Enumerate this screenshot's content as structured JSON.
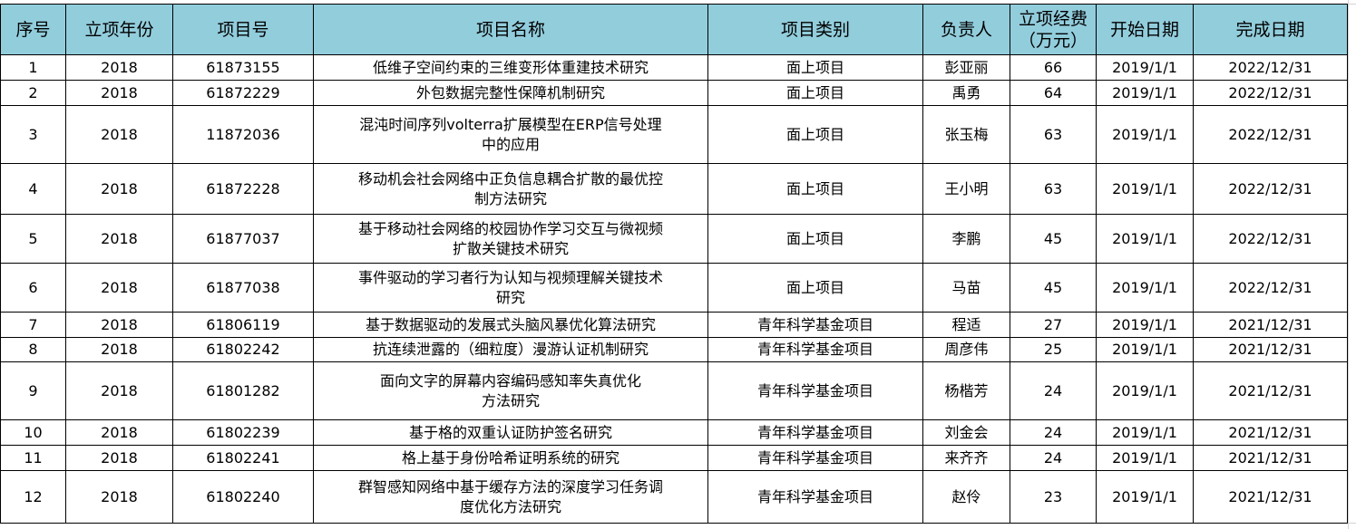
{
  "header": [
    "序号",
    "立项年份",
    "项目号",
    "项目名称",
    "项目类别",
    "负责人",
    "立项经费\n（万元）",
    "开始日期",
    "完成日期"
  ],
  "header_color": "#92CDDC",
  "rows": [
    [
      "1",
      "2018",
      "61873155",
      "低维子空间约束的三维变形体重建技术研究",
      "面上项目",
      "彭亚丽",
      "66",
      "2019/1/1",
      "2022/12/31"
    ],
    [
      "2",
      "2018",
      "61872229",
      "外包数据完整性保障机制研究",
      "面上项目",
      "禹勇",
      "64",
      "2019/1/1",
      "2022/12/31"
    ],
    [
      "3",
      "2018",
      "11872036",
      "混沌时间序列volterra扩展模型在ERP信号处理\n中的应用",
      "面上项目",
      "张玉梅",
      "63",
      "2019/1/1",
      "2022/12/31"
    ],
    [
      "4",
      "2018",
      "61872228",
      "移动机会社会网络中正负信息耦合扩散的最优控\n制方法研究",
      "面上项目",
      "王小明",
      "63",
      "2019/1/1",
      "2022/12/31"
    ],
    [
      "5",
      "2018",
      "61877037",
      "基于移动社会网络的校园协作学习交互与微视频\n扩散关键技术研究",
      "面上项目",
      "李鹏",
      "45",
      "2019/1/1",
      "2022/12/31"
    ],
    [
      "6",
      "2018",
      "61877038",
      "事件驱动的学习者行为认知与视频理解关键技术\n研究",
      "面上项目",
      "马苗",
      "45",
      "2019/1/1",
      "2022/12/31"
    ],
    [
      "7",
      "2018",
      "61806119",
      "基于数据驱动的发展式头脑风暴优化算法研究",
      "青年科学基金项目",
      "程适",
      "27",
      "2019/1/1",
      "2021/12/31"
    ],
    [
      "8",
      "2018",
      "61802242",
      "抗连续泄露的（细粒度）漫游认证机制研究",
      "青年科学基金项目",
      "周彦伟",
      "25",
      "2019/1/1",
      "2021/12/31"
    ],
    [
      "9",
      "2018",
      "61801282",
      "面向文字的屏幕内容编码感知率失真优化\n方法研究",
      "青年科学基金项目",
      "杨楷芳",
      "24",
      "2019/1/1",
      "2021/12/31"
    ],
    [
      "10",
      "2018",
      "61802239",
      "基于格的双重认证防护签名研究",
      "青年科学基金项目",
      "刘金会",
      "24",
      "2019/1/1",
      "2021/12/31"
    ],
    [
      "11",
      "2018",
      "61802241",
      "格上基于身份哈希证明系统的研究",
      "青年科学基金项目",
      "来齐齐",
      "24",
      "2019/1/1",
      "2021/12/31"
    ],
    [
      "12",
      "2018",
      "61802240",
      "群智感知网络中基于缓存方法的深度学习任务调\n度优化方法研究",
      "青年科学基金项目",
      "赵伶",
      "23",
      "2019/1/1",
      "2021/12/31"
    ]
  ]
}
